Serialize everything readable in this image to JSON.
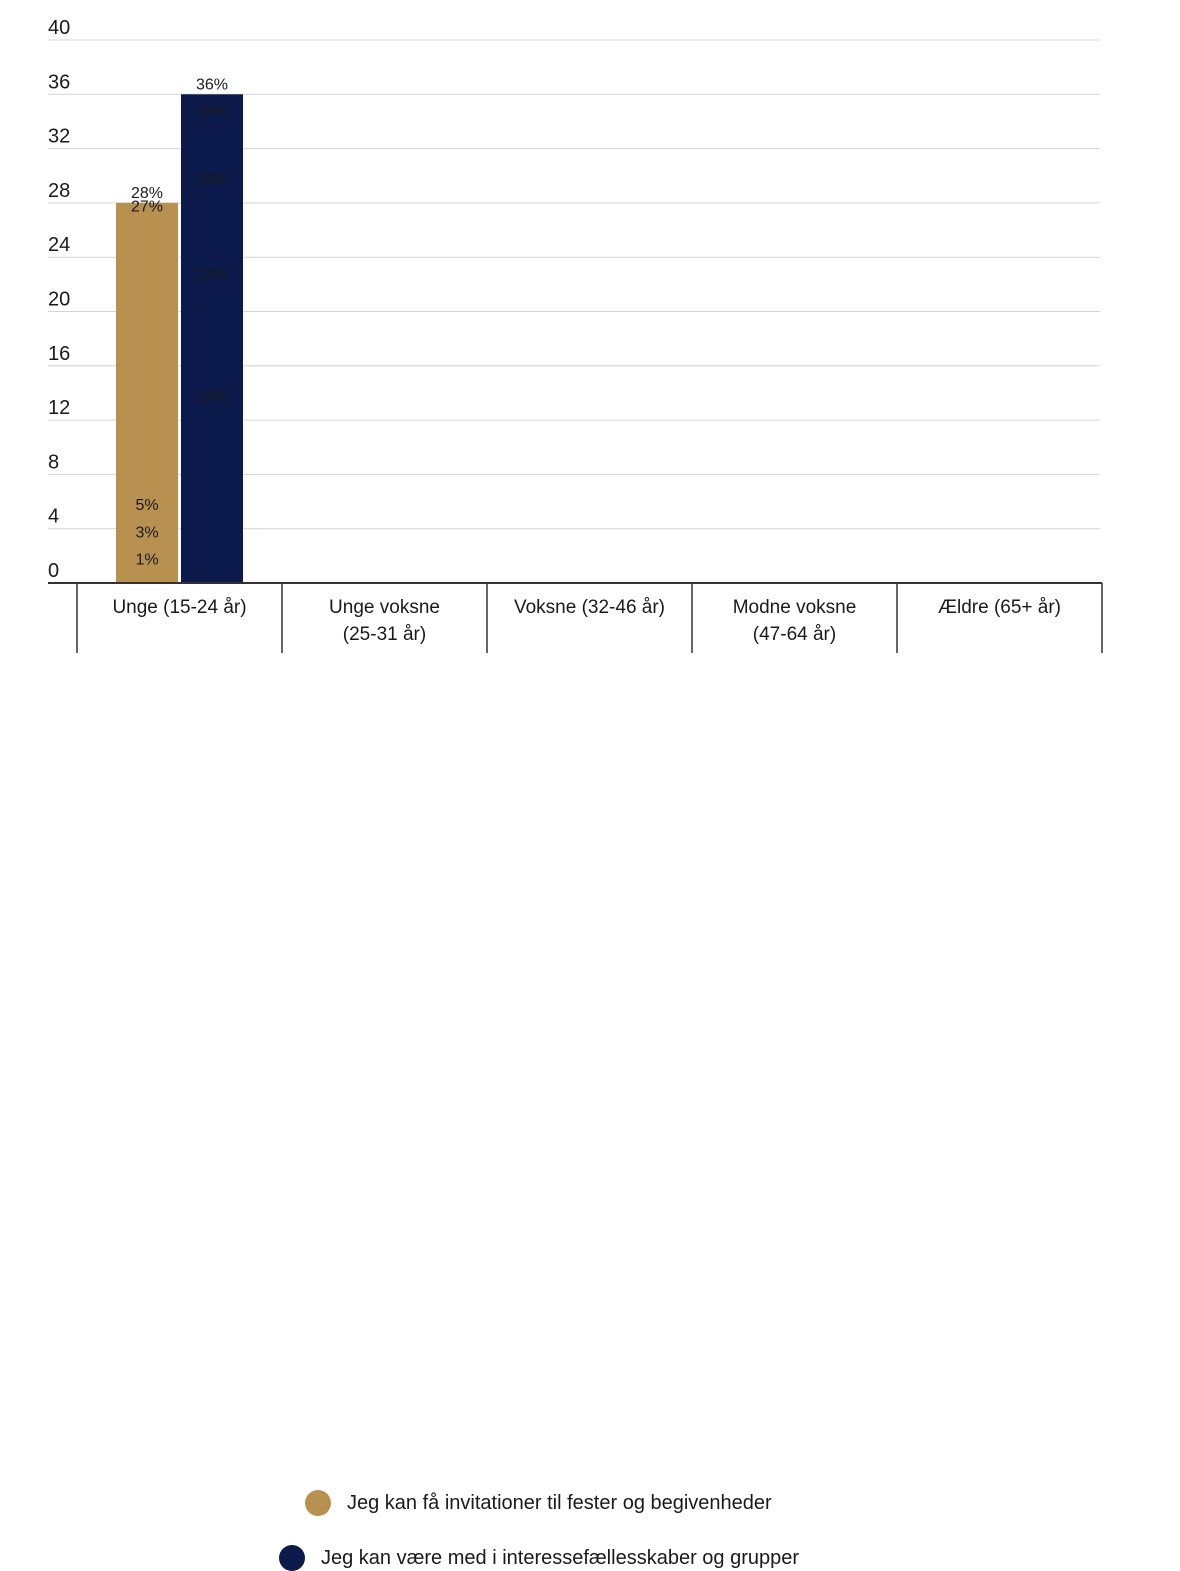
{
  "chart_data": {
    "type": "bar",
    "categories": [
      [
        "Unge (15-24 år)"
      ],
      [
        "Unge voksne",
        "(25-31 år)"
      ],
      [
        "Voksne (32-46 år)"
      ],
      [
        "Modne voksne",
        "(47-64 år)"
      ],
      [
        "Ældre (65+ år)"
      ]
    ],
    "series": [
      {
        "name": "Jeg kan få invitationer til fester og begivenheder",
        "color": "#b89050",
        "values": [
          28,
          27,
          5,
          3,
          1
        ],
        "labels": [
          "28%",
          "27%",
          "5%",
          "3%",
          "1%"
        ]
      },
      {
        "name": "Jeg kan være med i interessefællesskaber og grupper",
        "color": "#0b1a4a",
        "values": [
          22,
          13,
          29,
          34,
          36
        ],
        "labels": [
          "22%",
          "13%",
          "29%",
          "34%",
          "36%"
        ]
      }
    ],
    "ylim": [
      0,
      40
    ],
    "yticks": [
      0,
      4,
      8,
      12,
      16,
      20,
      24,
      28,
      32,
      36,
      40
    ],
    "grid": true,
    "legend_position": "bottom-center"
  }
}
